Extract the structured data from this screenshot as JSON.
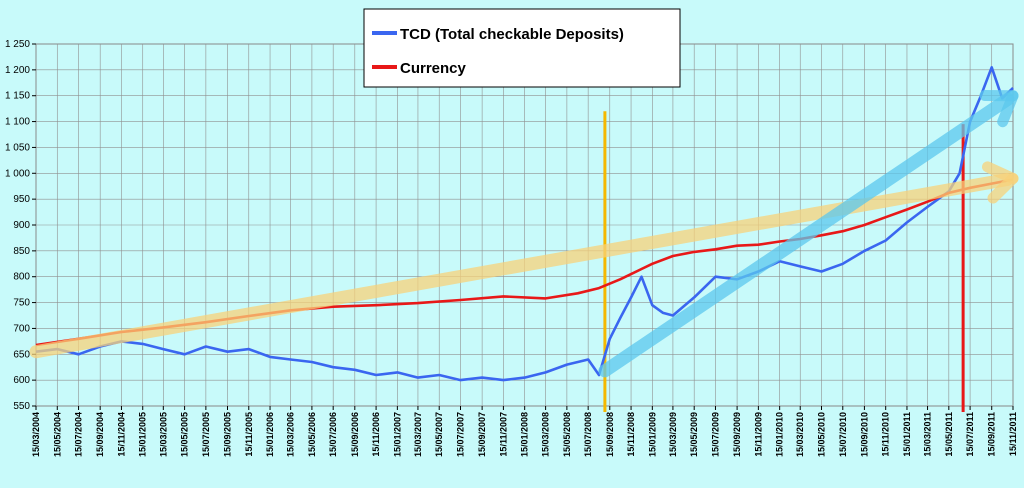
{
  "chart_data": {
    "type": "line",
    "ylim": [
      550,
      1250
    ],
    "ytick_step": 50,
    "grid": true,
    "legend_position": "top-center",
    "x_date_start": "2004-03-15",
    "x_date_end": "2011-11-15",
    "xtick_labels": [
      "15/03/2004",
      "15/05/2004",
      "15/07/2004",
      "15/09/2004",
      "15/11/2004",
      "15/01/2005",
      "15/03/2005",
      "15/05/2005",
      "15/07/2005",
      "15/09/2005",
      "15/11/2005",
      "15/01/2006",
      "15/03/2006",
      "15/05/2006",
      "15/07/2006",
      "15/09/2006",
      "15/11/2006",
      "15/01/2007",
      "15/03/2007",
      "15/05/2007",
      "15/07/2007",
      "15/09/2007",
      "15/11/2007",
      "15/01/2008",
      "15/03/2008",
      "15/05/2008",
      "15/07/2008",
      "15/09/2008",
      "15/11/2008",
      "15/01/2009",
      "15/03/2009",
      "15/05/2009",
      "15/07/2009",
      "15/09/2009",
      "15/11/2009",
      "15/01/2010",
      "15/03/2010",
      "15/05/2010",
      "15/07/2010",
      "15/09/2010",
      "15/11/2010",
      "15/01/2011",
      "15/03/2011",
      "15/05/2011",
      "15/07/2011",
      "15/09/2011",
      "15/11/2011"
    ],
    "series": [
      {
        "name": "TCD (Total checkable Deposits)",
        "color": "#3a66f0",
        "x": [
          "2004-03-15",
          "2004-05-15",
          "2004-07-15",
          "2004-09-15",
          "2004-11-15",
          "2005-01-15",
          "2005-03-15",
          "2005-05-15",
          "2005-07-15",
          "2005-09-15",
          "2005-11-15",
          "2006-01-15",
          "2006-03-15",
          "2006-05-15",
          "2006-07-15",
          "2006-09-15",
          "2006-11-15",
          "2007-01-15",
          "2007-03-15",
          "2007-05-15",
          "2007-07-15",
          "2007-09-15",
          "2007-11-15",
          "2008-01-15",
          "2008-03-15",
          "2008-05-15",
          "2008-07-15",
          "2008-08-15",
          "2008-09-15",
          "2008-10-15",
          "2008-11-15",
          "2008-12-15",
          "2009-01-15",
          "2009-02-15",
          "2009-03-15",
          "2009-05-15",
          "2009-07-15",
          "2009-09-15",
          "2009-11-15",
          "2010-01-15",
          "2010-03-15",
          "2010-05-15",
          "2010-07-15",
          "2010-09-15",
          "2010-11-15",
          "2011-01-15",
          "2011-03-15",
          "2011-05-15",
          "2011-06-15",
          "2011-07-15",
          "2011-08-15",
          "2011-09-15",
          "2011-10-15",
          "2011-11-15"
        ],
        "values": [
          655,
          660,
          650,
          665,
          675,
          670,
          660,
          650,
          665,
          655,
          660,
          645,
          640,
          635,
          625,
          620,
          610,
          615,
          605,
          610,
          600,
          605,
          600,
          605,
          615,
          630,
          640,
          610,
          680,
          720,
          760,
          800,
          745,
          730,
          725,
          760,
          800,
          795,
          810,
          830,
          820,
          810,
          825,
          850,
          870,
          905,
          935,
          965,
          1000,
          1100,
          1150,
          1205,
          1145,
          1165
        ]
      },
      {
        "name": "Currency",
        "color": "#e81818",
        "x": [
          "2004-03-15",
          "2004-07-15",
          "2004-11-15",
          "2005-03-15",
          "2005-07-15",
          "2005-11-15",
          "2006-03-15",
          "2006-07-15",
          "2006-11-15",
          "2007-03-15",
          "2007-07-15",
          "2007-11-15",
          "2008-03-15",
          "2008-06-15",
          "2008-08-15",
          "2008-10-15",
          "2008-12-15",
          "2009-01-15",
          "2009-03-15",
          "2009-05-15",
          "2009-07-15",
          "2009-09-15",
          "2009-11-15",
          "2010-01-15",
          "2010-03-15",
          "2010-05-15",
          "2010-07-15",
          "2010-09-15",
          "2010-11-15",
          "2011-01-15",
          "2011-03-15",
          "2011-05-15",
          "2011-07-15",
          "2011-09-15",
          "2011-11-15"
        ],
        "values": [
          668,
          680,
          693,
          702,
          712,
          724,
          735,
          742,
          745,
          749,
          755,
          762,
          758,
          768,
          778,
          795,
          815,
          825,
          840,
          848,
          853,
          860,
          862,
          868,
          873,
          880,
          888,
          900,
          915,
          930,
          945,
          962,
          972,
          980,
          988
        ]
      }
    ],
    "annotations": [
      {
        "type": "vline",
        "x": "2008-09-01",
        "color": "#f5b800"
      },
      {
        "type": "vline",
        "x": "2011-06-25",
        "color": "#e81818"
      },
      {
        "type": "arrow",
        "from": [
          "2004-03-15",
          655
        ],
        "to": [
          "2011-11-15",
          990
        ],
        "color": "#f8d27a"
      },
      {
        "type": "arrow",
        "from": [
          "2008-09-01",
          618
        ],
        "to": [
          "2011-11-15",
          1150
        ],
        "color": "#5cc8ee"
      }
    ]
  }
}
